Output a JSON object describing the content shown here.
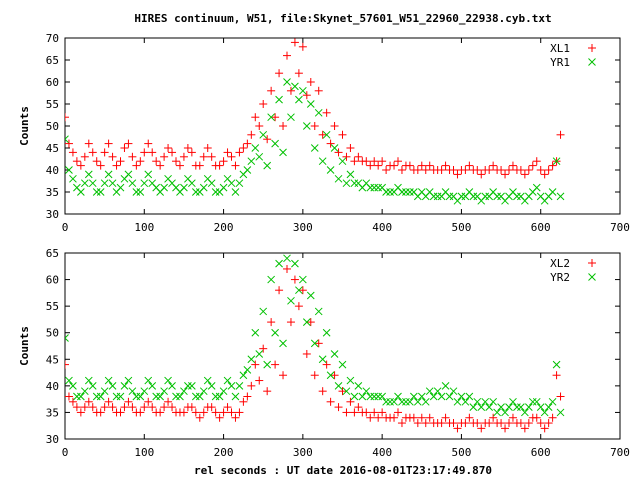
{
  "title": "HIRES continuum, W51, file:Skynet_57601_W51_22960_22938.cyb.txt",
  "xlabel": "rel seconds : UT date 2016-08-01T23:17:49.870",
  "colors": {
    "red": "#ff0000",
    "green": "#00c000"
  },
  "chart_data": [
    {
      "type": "scatter",
      "ylabel": "Counts",
      "xlim": [
        0,
        700
      ],
      "ylim": [
        30,
        70
      ],
      "xticks": [
        0,
        100,
        200,
        300,
        400,
        500,
        600,
        700
      ],
      "yticks": [
        30,
        35,
        40,
        45,
        50,
        55,
        60,
        65,
        70
      ],
      "legend_position": "top-right",
      "series": [
        {
          "name": "XL1",
          "marker": "plus",
          "color": "#ff0000",
          "x": [
            0,
            5,
            10,
            15,
            20,
            25,
            30,
            35,
            40,
            45,
            50,
            55,
            60,
            65,
            70,
            75,
            80,
            85,
            90,
            95,
            100,
            105,
            110,
            115,
            120,
            125,
            130,
            135,
            140,
            145,
            150,
            155,
            160,
            165,
            170,
            175,
            180,
            185,
            190,
            195,
            200,
            205,
            210,
            215,
            220,
            225,
            230,
            235,
            240,
            245,
            250,
            255,
            260,
            265,
            270,
            275,
            280,
            285,
            290,
            295,
            300,
            305,
            310,
            315,
            320,
            325,
            330,
            335,
            340,
            345,
            350,
            355,
            360,
            365,
            370,
            375,
            380,
            385,
            390,
            395,
            400,
            405,
            410,
            415,
            420,
            425,
            430,
            435,
            440,
            445,
            450,
            455,
            460,
            465,
            470,
            475,
            480,
            485,
            490,
            495,
            500,
            505,
            510,
            515,
            520,
            525,
            530,
            535,
            540,
            545,
            550,
            555,
            560,
            565,
            570,
            575,
            580,
            585,
            590,
            595,
            600,
            605,
            610,
            615,
            620,
            625
          ],
          "y": [
            52,
            46,
            44,
            42,
            41,
            43,
            46,
            44,
            42,
            41,
            44,
            46,
            43,
            41,
            42,
            45,
            46,
            43,
            41,
            42,
            44,
            46,
            44,
            42,
            41,
            43,
            45,
            44,
            42,
            41,
            43,
            45,
            44,
            41,
            41,
            43,
            45,
            43,
            41,
            41,
            42,
            44,
            43,
            41,
            44,
            45,
            46,
            48,
            52,
            50,
            55,
            47,
            58,
            52,
            62,
            50,
            66,
            58,
            69,
            62,
            68,
            57,
            60,
            50,
            58,
            48,
            53,
            46,
            50,
            44,
            48,
            43,
            45,
            42,
            43,
            42,
            42,
            41,
            42,
            41,
            42,
            40,
            41,
            41,
            42,
            40,
            41,
            41,
            40,
            40,
            41,
            40,
            41,
            40,
            40,
            40,
            41,
            40,
            40,
            39,
            40,
            40,
            41,
            40,
            40,
            39,
            40,
            40,
            41,
            40,
            40,
            39,
            40,
            41,
            40,
            40,
            39,
            40,
            41,
            42,
            40,
            39,
            40,
            41,
            42,
            48
          ]
        },
        {
          "name": "YR1",
          "marker": "cross",
          "color": "#00c000",
          "x": [
            0,
            5,
            10,
            15,
            20,
            25,
            30,
            35,
            40,
            45,
            50,
            55,
            60,
            65,
            70,
            75,
            80,
            85,
            90,
            95,
            100,
            105,
            110,
            115,
            120,
            125,
            130,
            135,
            140,
            145,
            150,
            155,
            160,
            165,
            170,
            175,
            180,
            185,
            190,
            195,
            200,
            205,
            210,
            215,
            220,
            225,
            230,
            235,
            240,
            245,
            250,
            255,
            260,
            265,
            270,
            275,
            280,
            285,
            290,
            295,
            300,
            305,
            310,
            315,
            320,
            325,
            330,
            335,
            340,
            345,
            350,
            355,
            360,
            365,
            370,
            375,
            380,
            385,
            390,
            395,
            400,
            405,
            410,
            415,
            420,
            425,
            430,
            435,
            440,
            445,
            450,
            455,
            460,
            465,
            470,
            475,
            480,
            485,
            490,
            495,
            500,
            505,
            510,
            515,
            520,
            525,
            530,
            535,
            540,
            545,
            550,
            555,
            560,
            565,
            570,
            575,
            580,
            585,
            590,
            595,
            600,
            605,
            610,
            615,
            620,
            625
          ],
          "y": [
            47,
            40,
            38,
            36,
            35,
            37,
            39,
            37,
            35,
            35,
            37,
            39,
            37,
            35,
            36,
            38,
            39,
            37,
            35,
            35,
            37,
            39,
            37,
            36,
            35,
            36,
            38,
            37,
            36,
            35,
            36,
            38,
            37,
            35,
            35,
            36,
            38,
            37,
            35,
            35,
            36,
            38,
            37,
            35,
            37,
            39,
            40,
            42,
            45,
            43,
            48,
            41,
            52,
            46,
            56,
            44,
            60,
            52,
            59,
            56,
            58,
            50,
            55,
            45,
            53,
            42,
            48,
            40,
            45,
            38,
            42,
            37,
            39,
            37,
            37,
            36,
            37,
            36,
            36,
            36,
            36,
            35,
            35,
            35,
            36,
            35,
            35,
            35,
            35,
            34,
            35,
            34,
            35,
            34,
            34,
            34,
            35,
            34,
            34,
            33,
            34,
            34,
            35,
            34,
            34,
            33,
            34,
            34,
            35,
            34,
            34,
            33,
            34,
            35,
            34,
            34,
            33,
            34,
            35,
            36,
            34,
            33,
            34,
            35,
            42,
            34
          ]
        }
      ]
    },
    {
      "type": "scatter",
      "ylabel": "Counts",
      "xlim": [
        0,
        700
      ],
      "ylim": [
        30,
        65
      ],
      "xticks": [
        0,
        100,
        200,
        300,
        400,
        500,
        600,
        700
      ],
      "yticks": [
        30,
        35,
        40,
        45,
        50,
        55,
        60,
        65
      ],
      "legend_position": "top-right",
      "series": [
        {
          "name": "XL2",
          "marker": "plus",
          "color": "#ff0000",
          "x": [
            0,
            5,
            10,
            15,
            20,
            25,
            30,
            35,
            40,
            45,
            50,
            55,
            60,
            65,
            70,
            75,
            80,
            85,
            90,
            95,
            100,
            105,
            110,
            115,
            120,
            125,
            130,
            135,
            140,
            145,
            150,
            155,
            160,
            165,
            170,
            175,
            180,
            185,
            190,
            195,
            200,
            205,
            210,
            215,
            220,
            225,
            230,
            235,
            240,
            245,
            250,
            255,
            260,
            265,
            270,
            275,
            280,
            285,
            290,
            295,
            300,
            305,
            310,
            315,
            320,
            325,
            330,
            335,
            340,
            345,
            350,
            355,
            360,
            365,
            370,
            375,
            380,
            385,
            390,
            395,
            400,
            405,
            410,
            415,
            420,
            425,
            430,
            435,
            440,
            445,
            450,
            455,
            460,
            465,
            470,
            475,
            480,
            485,
            490,
            495,
            500,
            505,
            510,
            515,
            520,
            525,
            530,
            535,
            540,
            545,
            550,
            555,
            560,
            565,
            570,
            575,
            580,
            585,
            590,
            595,
            600,
            605,
            610,
            615,
            620,
            625
          ],
          "y": [
            44,
            38,
            37,
            36,
            35,
            36,
            37,
            36,
            35,
            35,
            36,
            37,
            36,
            35,
            35,
            36,
            37,
            36,
            35,
            35,
            36,
            37,
            36,
            35,
            35,
            36,
            37,
            36,
            35,
            35,
            35,
            36,
            36,
            35,
            34,
            35,
            36,
            36,
            35,
            34,
            35,
            36,
            35,
            34,
            35,
            37,
            38,
            40,
            44,
            41,
            47,
            39,
            52,
            44,
            58,
            42,
            62,
            52,
            60,
            55,
            58,
            46,
            52,
            42,
            48,
            39,
            44,
            37,
            42,
            36,
            39,
            35,
            37,
            35,
            36,
            35,
            35,
            34,
            35,
            34,
            35,
            34,
            34,
            34,
            35,
            33,
            34,
            34,
            34,
            33,
            34,
            33,
            34,
            33,
            33,
            33,
            34,
            33,
            33,
            32,
            33,
            33,
            34,
            33,
            33,
            32,
            33,
            33,
            34,
            33,
            33,
            32,
            33,
            34,
            33,
            33,
            32,
            33,
            34,
            34,
            33,
            32,
            33,
            34,
            42,
            38
          ]
        },
        {
          "name": "YR2",
          "marker": "cross",
          "color": "#00c000",
          "x": [
            0,
            5,
            10,
            15,
            20,
            25,
            30,
            35,
            40,
            45,
            50,
            55,
            60,
            65,
            70,
            75,
            80,
            85,
            90,
            95,
            100,
            105,
            110,
            115,
            120,
            125,
            130,
            135,
            140,
            145,
            150,
            155,
            160,
            165,
            170,
            175,
            180,
            185,
            190,
            195,
            200,
            205,
            210,
            215,
            220,
            225,
            230,
            235,
            240,
            245,
            250,
            255,
            260,
            265,
            270,
            275,
            280,
            285,
            290,
            295,
            300,
            305,
            310,
            315,
            320,
            325,
            330,
            335,
            340,
            345,
            350,
            355,
            360,
            365,
            370,
            375,
            380,
            385,
            390,
            395,
            400,
            405,
            410,
            415,
            420,
            425,
            430,
            435,
            440,
            445,
            450,
            455,
            460,
            465,
            470,
            475,
            480,
            485,
            490,
            495,
            500,
            505,
            510,
            515,
            520,
            525,
            530,
            535,
            540,
            545,
            550,
            555,
            560,
            565,
            570,
            575,
            580,
            585,
            590,
            595,
            600,
            605,
            610,
            615,
            620,
            625
          ],
          "y": [
            49,
            41,
            40,
            38,
            38,
            39,
            41,
            40,
            38,
            38,
            39,
            41,
            40,
            38,
            38,
            40,
            41,
            39,
            38,
            38,
            39,
            41,
            40,
            38,
            38,
            39,
            41,
            40,
            38,
            38,
            39,
            40,
            40,
            38,
            38,
            39,
            41,
            40,
            38,
            38,
            39,
            41,
            40,
            38,
            40,
            42,
            43,
            45,
            50,
            46,
            54,
            44,
            60,
            50,
            63,
            48,
            64,
            56,
            63,
            58,
            60,
            52,
            57,
            48,
            54,
            45,
            50,
            42,
            46,
            40,
            44,
            39,
            41,
            38,
            40,
            38,
            39,
            38,
            38,
            38,
            38,
            37,
            37,
            37,
            38,
            37,
            37,
            37,
            38,
            37,
            38,
            37,
            39,
            38,
            39,
            38,
            40,
            38,
            39,
            37,
            38,
            37,
            38,
            36,
            37,
            36,
            37,
            36,
            37,
            35,
            36,
            35,
            36,
            37,
            36,
            36,
            35,
            36,
            37,
            37,
            36,
            35,
            36,
            37,
            44,
            35
          ]
        }
      ]
    }
  ]
}
